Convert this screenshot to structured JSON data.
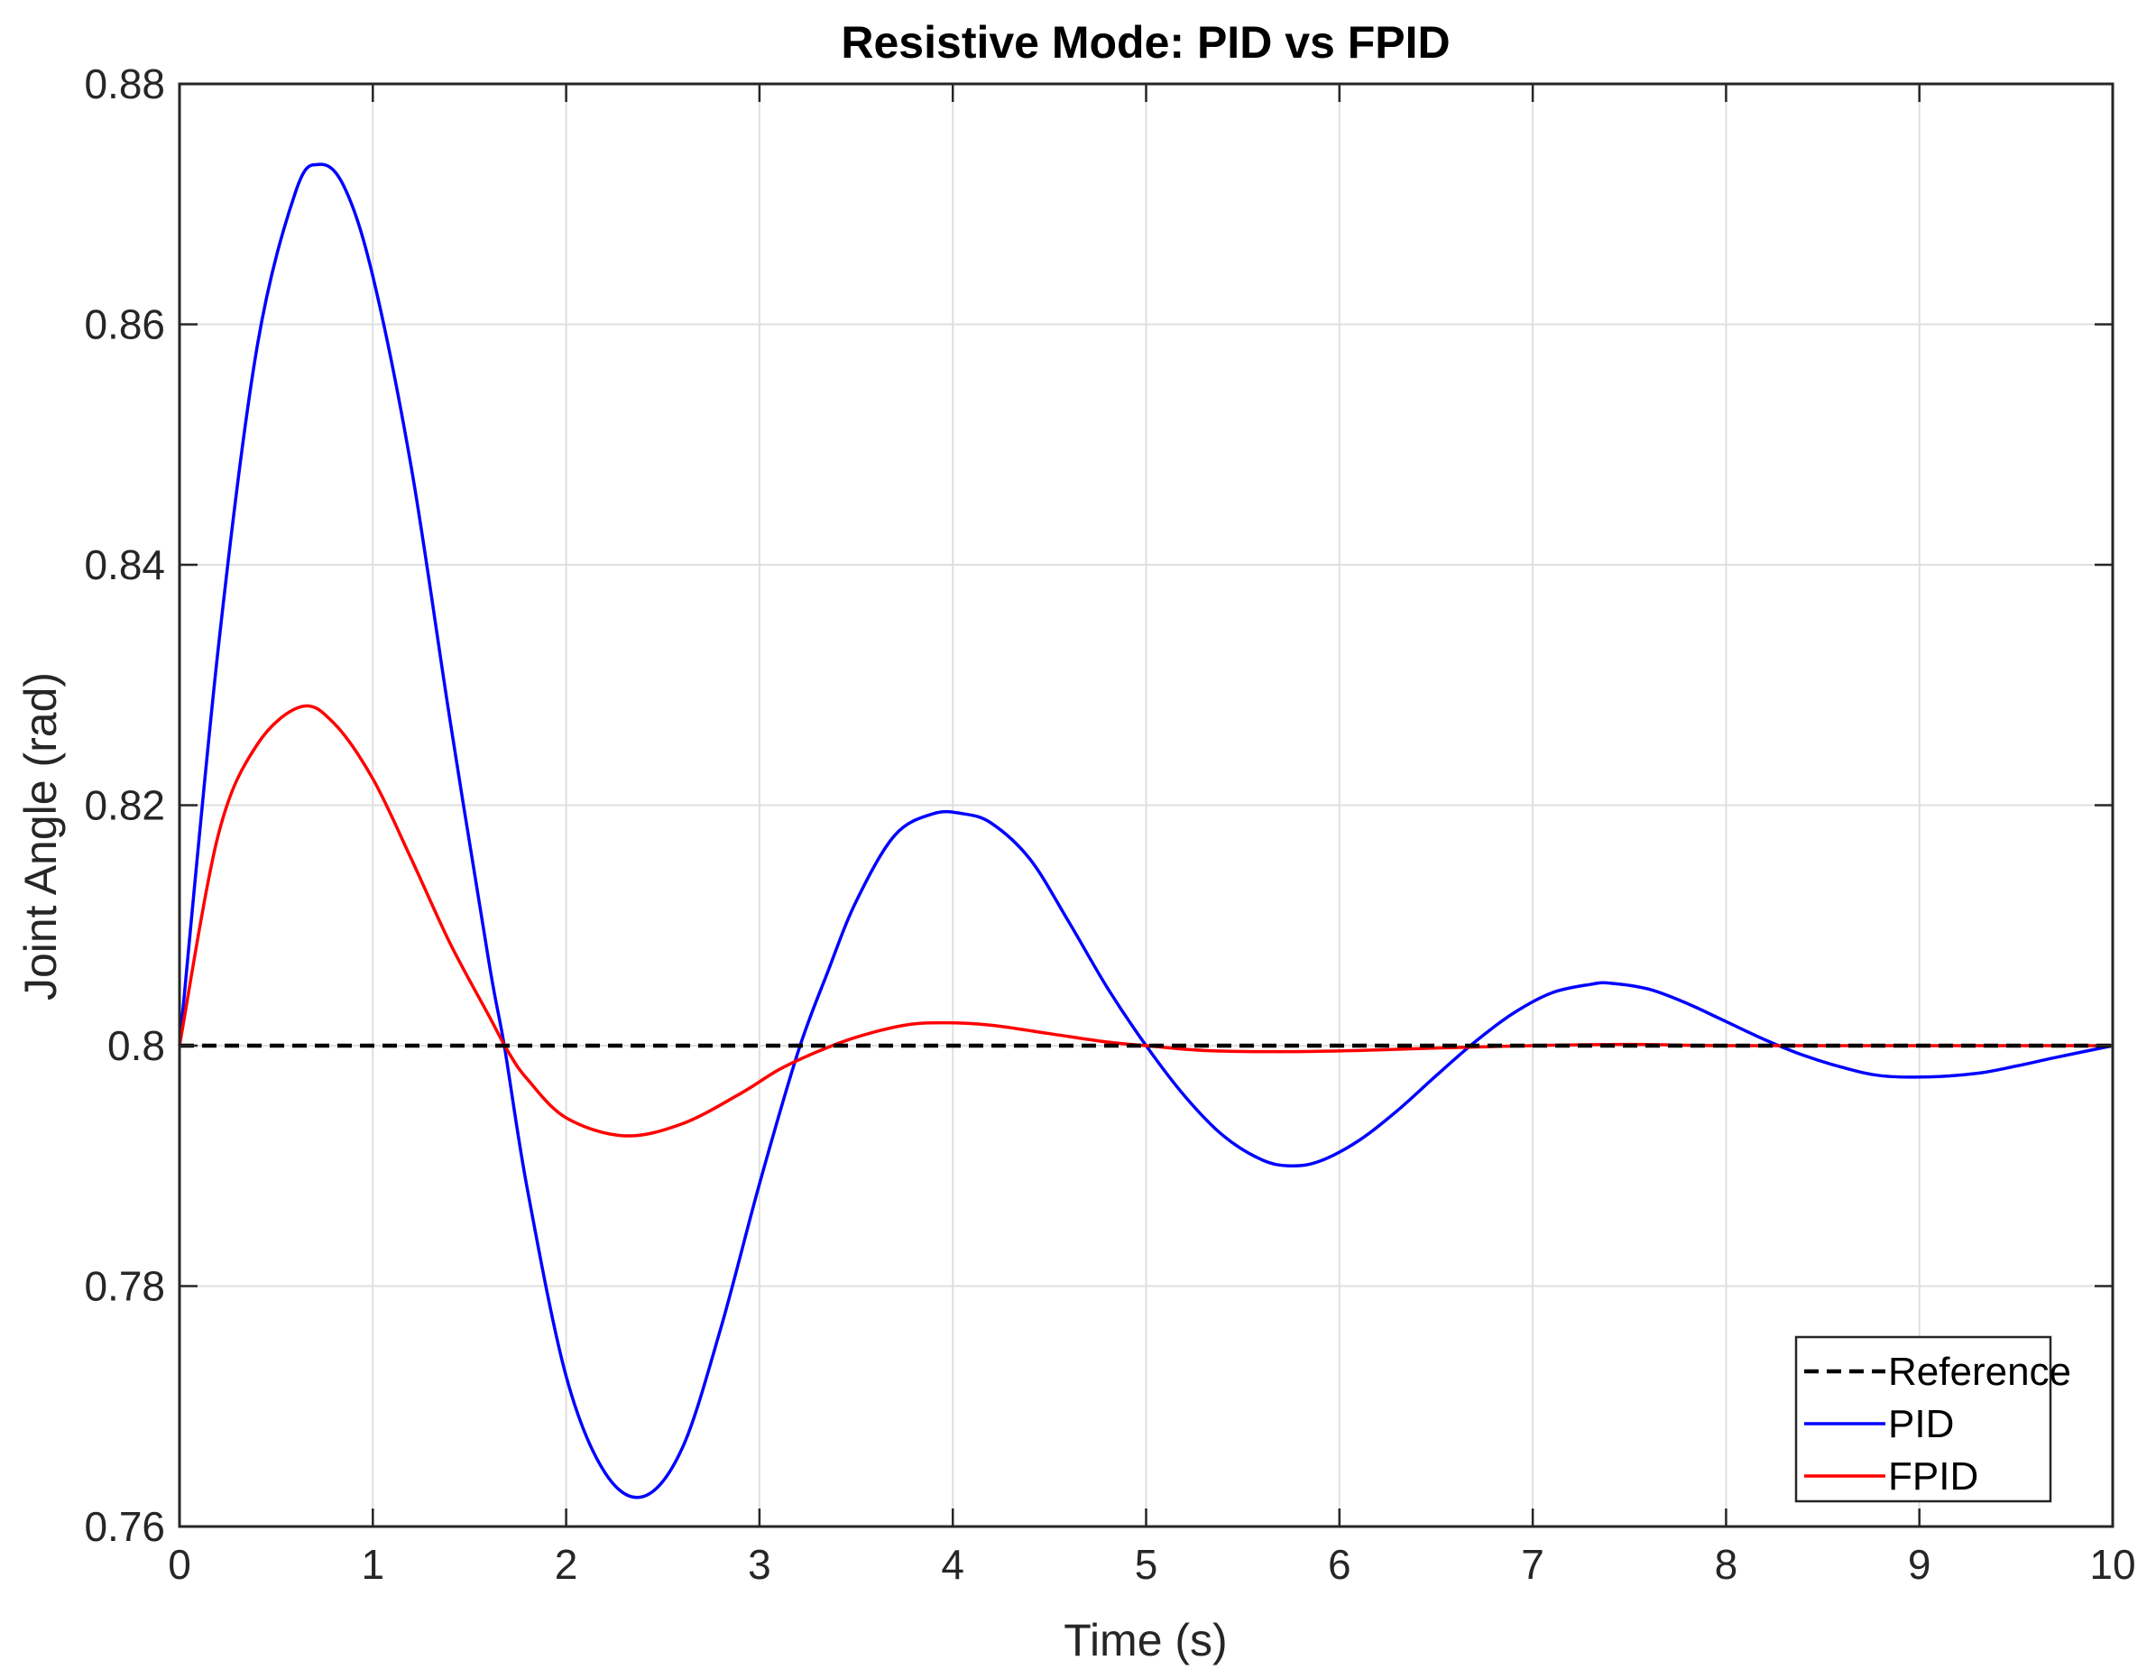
{
  "chart_data": {
    "type": "line",
    "title": "Resistive Mode: PID vs FPID",
    "xlabel": "Time (s)",
    "ylabel": "Joint Angle (rad)",
    "xlim": [
      0,
      10
    ],
    "ylim": [
      0.76,
      0.88
    ],
    "xticks": [
      0,
      1,
      2,
      3,
      4,
      5,
      6,
      7,
      8,
      9,
      10
    ],
    "xtick_labels": [
      "0",
      "1",
      "2",
      "3",
      "4",
      "5",
      "6",
      "7",
      "8",
      "9",
      "10"
    ],
    "yticks": [
      0.76,
      0.78,
      0.8,
      0.82,
      0.84,
      0.86,
      0.88
    ],
    "ytick_labels": [
      "0.76",
      "0.78",
      "0.8",
      "0.82",
      "0.84",
      "0.86",
      "0.88"
    ],
    "grid": true,
    "legend_position": "bottom-right",
    "series": [
      {
        "name": "Reference",
        "color": "#000000",
        "style": "dashed",
        "x": [
          0,
          10
        ],
        "y": [
          0.8,
          0.8
        ]
      },
      {
        "name": "PID",
        "color": "#0000ff",
        "style": "solid",
        "x": [
          0,
          0.2,
          0.4,
          0.6,
          0.72,
          0.85,
          1.0,
          1.2,
          1.4,
          1.6,
          1.68,
          1.8,
          2.0,
          2.2,
          2.4,
          2.6,
          2.8,
          3.0,
          3.2,
          3.35,
          3.5,
          3.7,
          3.9,
          4.05,
          4.2,
          4.4,
          4.6,
          4.8,
          5.0,
          5.2,
          5.4,
          5.6,
          5.75,
          5.9,
          6.1,
          6.3,
          6.5,
          6.7,
          6.9,
          7.1,
          7.3,
          7.4,
          7.6,
          7.8,
          8.0,
          8.2,
          8.4,
          8.6,
          8.8,
          9.05,
          9.3,
          9.5,
          9.7,
          10.0
        ],
        "y": [
          0.8,
          0.833,
          0.858,
          0.871,
          0.8733,
          0.8715,
          0.864,
          0.848,
          0.827,
          0.807,
          0.8,
          0.788,
          0.7725,
          0.7645,
          0.7625,
          0.7665,
          0.7765,
          0.7885,
          0.7995,
          0.806,
          0.812,
          0.8175,
          0.8193,
          0.8193,
          0.8185,
          0.8155,
          0.8103,
          0.8048,
          0.8,
          0.7958,
          0.7925,
          0.7905,
          0.79,
          0.7904,
          0.7921,
          0.7946,
          0.7975,
          0.8003,
          0.8027,
          0.8044,
          0.8051,
          0.8052,
          0.8047,
          0.8035,
          0.802,
          0.8005,
          0.7992,
          0.7982,
          0.7975,
          0.7974,
          0.7977,
          0.7983,
          0.799,
          0.8
        ]
      },
      {
        "name": "FPID",
        "color": "#ff0000",
        "style": "solid",
        "x": [
          0,
          0.2,
          0.4,
          0.63,
          0.8,
          1.0,
          1.2,
          1.4,
          1.6,
          1.7,
          1.8,
          2.0,
          2.3,
          2.6,
          2.9,
          3.1,
          3.3,
          3.5,
          3.75,
          3.95,
          4.2,
          4.5,
          4.8,
          5.0,
          5.3,
          5.7,
          6.1,
          6.5,
          7.0,
          7.5,
          8.0,
          9.0,
          10.0
        ],
        "y": [
          0.8,
          0.8175,
          0.825,
          0.8282,
          0.8268,
          0.8222,
          0.8155,
          0.8085,
          0.8025,
          0.7995,
          0.7972,
          0.794,
          0.7925,
          0.7935,
          0.796,
          0.798,
          0.7995,
          0.8007,
          0.8017,
          0.8019,
          0.8017,
          0.801,
          0.8003,
          0.8,
          0.7996,
          0.7995,
          0.7996,
          0.7998,
          0.8,
          0.8001,
          0.8,
          0.8,
          0.8
        ]
      }
    ]
  }
}
